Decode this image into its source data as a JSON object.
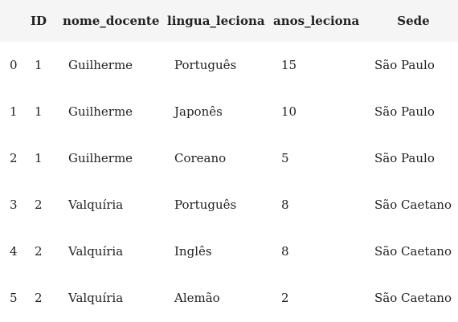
{
  "table": {
    "columns": [
      "",
      "ID",
      "nome_docente",
      "lingua_leciona",
      "anos_leciona",
      "Sede"
    ],
    "rows": [
      {
        "index": "0",
        "id": "1",
        "nome_docente": "Guilherme",
        "lingua_leciona": "Português",
        "anos_leciona": "15",
        "sede": "São Paulo"
      },
      {
        "index": "1",
        "id": "1",
        "nome_docente": "Guilherme",
        "lingua_leciona": "Japonês",
        "anos_leciona": "10",
        "sede": "São Paulo"
      },
      {
        "index": "2",
        "id": "1",
        "nome_docente": "Guilherme",
        "lingua_leciona": "Coreano",
        "anos_leciona": "5",
        "sede": "São Paulo"
      },
      {
        "index": "3",
        "id": "2",
        "nome_docente": "Valquíria",
        "lingua_leciona": "Português",
        "anos_leciona": "8",
        "sede": "São Caetano"
      },
      {
        "index": "4",
        "id": "2",
        "nome_docente": "Valquíria",
        "lingua_leciona": "Inglês",
        "anos_leciona": "8",
        "sede": "São Caetano"
      },
      {
        "index": "5",
        "id": "2",
        "nome_docente": "Valquíria",
        "lingua_leciona": "Alemão",
        "anos_leciona": "2",
        "sede": "São Caetano"
      }
    ]
  }
}
